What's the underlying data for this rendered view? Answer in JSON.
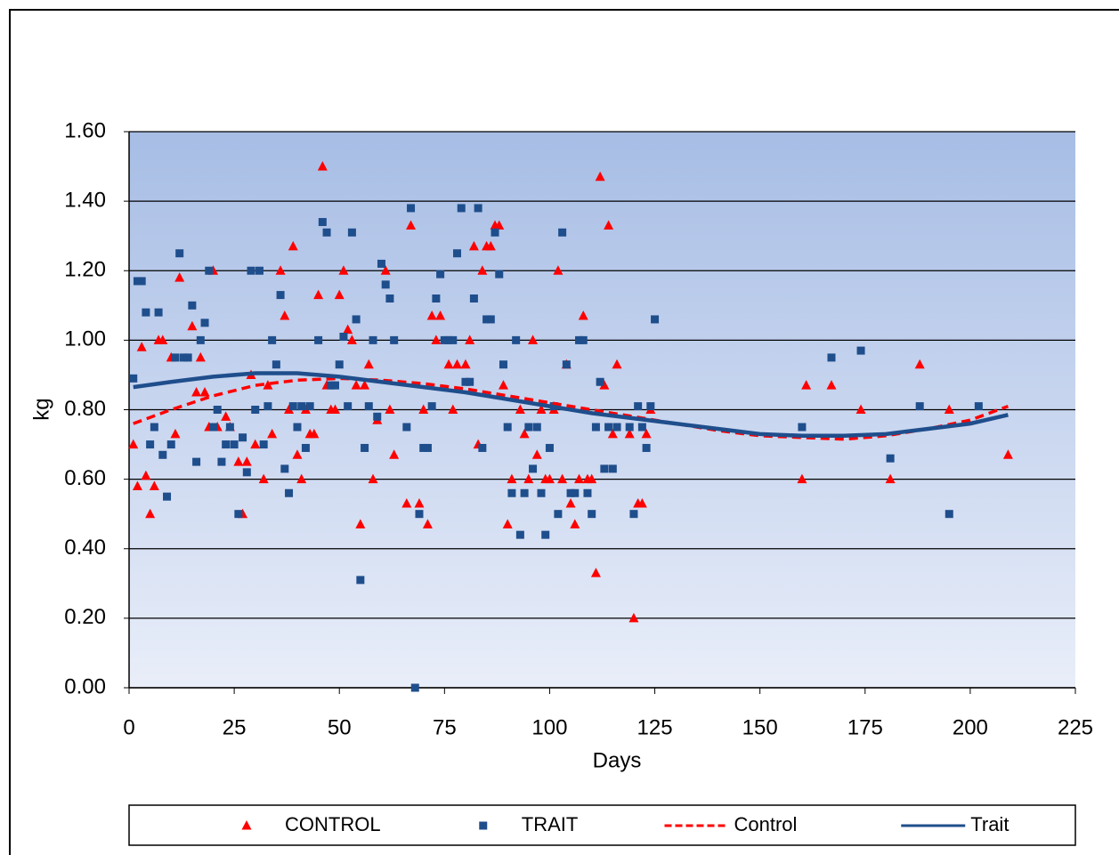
{
  "chart_data": {
    "type": "scatter",
    "x_label": "Days",
    "y_label": "kg",
    "xlim": [
      0,
      225
    ],
    "xticks": [
      0,
      25,
      50,
      75,
      100,
      125,
      150,
      175,
      200,
      225
    ],
    "ylim": [
      0,
      1.6
    ],
    "yticks": [
      {
        "value": 0,
        "label": "0.00"
      },
      {
        "value": 0.2,
        "label": "0.20"
      },
      {
        "value": 0.4,
        "label": "0.40"
      },
      {
        "value": 0.6,
        "label": "0.60"
      },
      {
        "value": 0.8,
        "label": "0.80"
      },
      {
        "value": 1,
        "label": "1.00"
      },
      {
        "value": 1.2,
        "label": "1.20"
      },
      {
        "value": 1.4,
        "label": "1.40"
      },
      {
        "value": 1.6,
        "label": "1.60"
      }
    ],
    "grid": true,
    "legend": "bottom",
    "series": [
      {
        "name": "CONTROL",
        "mode": "markers",
        "marker": "triangle",
        "color": "#ff0000",
        "x": [
          1,
          2,
          3,
          4,
          5,
          6,
          7,
          8,
          10,
          11,
          12,
          15,
          16,
          17,
          18,
          19,
          20,
          21,
          23,
          24,
          26,
          27,
          28,
          29,
          30,
          32,
          33,
          34,
          36,
          37,
          38,
          39,
          40,
          41,
          42,
          43,
          44,
          45,
          46,
          47,
          48,
          49,
          50,
          51,
          52,
          53,
          54,
          55,
          56,
          57,
          58,
          59,
          61,
          62,
          63,
          66,
          67,
          69,
          70,
          71,
          72,
          73,
          74,
          76,
          77,
          78,
          80,
          81,
          82,
          83,
          84,
          85,
          86,
          87,
          88,
          89,
          90,
          91,
          93,
          94,
          95,
          96,
          97,
          98,
          99,
          100,
          101,
          102,
          103,
          104,
          105,
          106,
          107,
          108,
          109,
          110,
          111,
          112,
          113,
          114,
          115,
          116,
          119,
          120,
          121,
          122,
          123,
          124,
          160,
          161,
          167,
          174,
          181,
          188,
          195,
          209
        ],
        "values": [
          0.7,
          0.58,
          0.98,
          0.61,
          0.5,
          0.58,
          1,
          1,
          0.95,
          0.73,
          1.18,
          1.04,
          0.85,
          0.95,
          0.85,
          0.75,
          1.2,
          0.75,
          0.78,
          0.75,
          0.65,
          0.5,
          0.65,
          0.9,
          0.7,
          0.6,
          0.87,
          0.73,
          1.2,
          1.07,
          0.8,
          1.27,
          0.67,
          0.6,
          0.8,
          0.73,
          0.73,
          1.13,
          1.5,
          0.87,
          0.8,
          0.8,
          1.13,
          1.2,
          1.03,
          1,
          0.87,
          0.47,
          0.87,
          0.93,
          0.6,
          0.77,
          1.2,
          0.8,
          0.67,
          0.53,
          1.33,
          0.53,
          0.8,
          0.47,
          1.07,
          1,
          1.07,
          0.93,
          0.8,
          0.93,
          0.93,
          1,
          1.27,
          0.7,
          1.2,
          1.27,
          1.27,
          1.33,
          1.33,
          0.87,
          0.47,
          0.6,
          0.8,
          0.73,
          0.6,
          1,
          0.67,
          0.8,
          0.6,
          0.6,
          0.8,
          1.2,
          0.6,
          0.93,
          0.53,
          0.47,
          0.6,
          1.07,
          0.6,
          0.6,
          0.33,
          1.47,
          0.87,
          1.33,
          0.73,
          0.93,
          0.73,
          0.2,
          0.53,
          0.53,
          0.73,
          0.8,
          0.6,
          0.87,
          0.87,
          0.8,
          0.6,
          0.93,
          0.8,
          0.67
        ]
      },
      {
        "name": "TRAIT",
        "mode": "markers",
        "marker": "square",
        "color": "#1f4e8c",
        "x": [
          1,
          2,
          3,
          4,
          5,
          6,
          7,
          8,
          9,
          10,
          11,
          12,
          13,
          14,
          15,
          16,
          17,
          18,
          19,
          20,
          21,
          22,
          23,
          24,
          25,
          26,
          27,
          28,
          29,
          30,
          31,
          32,
          33,
          34,
          35,
          36,
          37,
          38,
          39,
          40,
          41,
          42,
          43,
          45,
          46,
          47,
          48,
          49,
          50,
          51,
          52,
          53,
          54,
          55,
          56,
          57,
          58,
          59,
          60,
          61,
          62,
          63,
          66,
          67,
          68,
          69,
          70,
          71,
          72,
          73,
          74,
          75,
          76,
          77,
          78,
          79,
          80,
          81,
          82,
          83,
          84,
          85,
          86,
          87,
          88,
          89,
          90,
          91,
          92,
          93,
          94,
          95,
          96,
          97,
          98,
          99,
          100,
          101,
          102,
          103,
          104,
          105,
          106,
          107,
          108,
          109,
          110,
          111,
          112,
          113,
          114,
          115,
          116,
          119,
          120,
          121,
          122,
          123,
          124,
          125,
          160,
          167,
          174,
          181,
          188,
          195,
          202
        ],
        "values": [
          0.89,
          1.17,
          1.17,
          1.08,
          0.7,
          0.75,
          1.08,
          0.67,
          0.55,
          0.7,
          0.95,
          1.25,
          0.95,
          0.95,
          1.1,
          0.65,
          1,
          1.05,
          1.2,
          0.75,
          0.8,
          0.65,
          0.7,
          0.75,
          0.7,
          0.5,
          0.72,
          0.62,
          1.2,
          0.8,
          1.2,
          0.7,
          0.81,
          1,
          0.93,
          1.13,
          0.63,
          0.56,
          0.81,
          0.75,
          0.81,
          0.69,
          0.81,
          1,
          1.34,
          1.31,
          0.87,
          0.87,
          0.93,
          1.01,
          0.81,
          1.31,
          1.06,
          0.31,
          0.69,
          0.81,
          1,
          0.78,
          1.22,
          1.16,
          1.12,
          1,
          0.75,
          1.38,
          0,
          0.5,
          0.69,
          0.69,
          0.81,
          1.12,
          1.19,
          1,
          1,
          1,
          1.25,
          1.38,
          0.88,
          0.88,
          1.12,
          1.38,
          0.69,
          1.06,
          1.06,
          1.31,
          1.19,
          0.93,
          0.75,
          0.56,
          1,
          0.44,
          0.56,
          0.75,
          0.63,
          0.75,
          0.56,
          0.44,
          0.69,
          0.81,
          0.5,
          1.31,
          0.93,
          0.56,
          0.56,
          1,
          1,
          0.56,
          0.5,
          0.75,
          0.88,
          0.63,
          0.75,
          0.63,
          0.75,
          0.75,
          0.5,
          0.81,
          0.75,
          0.69,
          0.81,
          1.06,
          0.75,
          0.95,
          0.97,
          0.66,
          0.81,
          0.5,
          0.81
        ]
      },
      {
        "name": "Control",
        "mode": "line",
        "dash": true,
        "color": "#ff0000",
        "x": [
          1,
          10,
          20,
          30,
          40,
          50,
          60,
          70,
          80,
          90,
          100,
          110,
          120,
          130,
          140,
          150,
          160,
          170,
          180,
          190,
          200,
          209
        ],
        "values": [
          0.76,
          0.8,
          0.84,
          0.87,
          0.885,
          0.89,
          0.885,
          0.875,
          0.86,
          0.84,
          0.82,
          0.8,
          0.78,
          0.76,
          0.74,
          0.725,
          0.72,
          0.715,
          0.725,
          0.745,
          0.77,
          0.81
        ]
      },
      {
        "name": "Trait",
        "mode": "line",
        "dash": false,
        "color": "#1f4e8c",
        "x": [
          1,
          10,
          20,
          30,
          40,
          50,
          60,
          70,
          80,
          90,
          100,
          110,
          120,
          130,
          140,
          150,
          160,
          170,
          180,
          190,
          200,
          209
        ],
        "values": [
          0.865,
          0.88,
          0.895,
          0.905,
          0.905,
          0.895,
          0.88,
          0.865,
          0.85,
          0.83,
          0.81,
          0.79,
          0.775,
          0.76,
          0.745,
          0.73,
          0.725,
          0.725,
          0.73,
          0.745,
          0.76,
          0.785
        ]
      }
    ]
  }
}
